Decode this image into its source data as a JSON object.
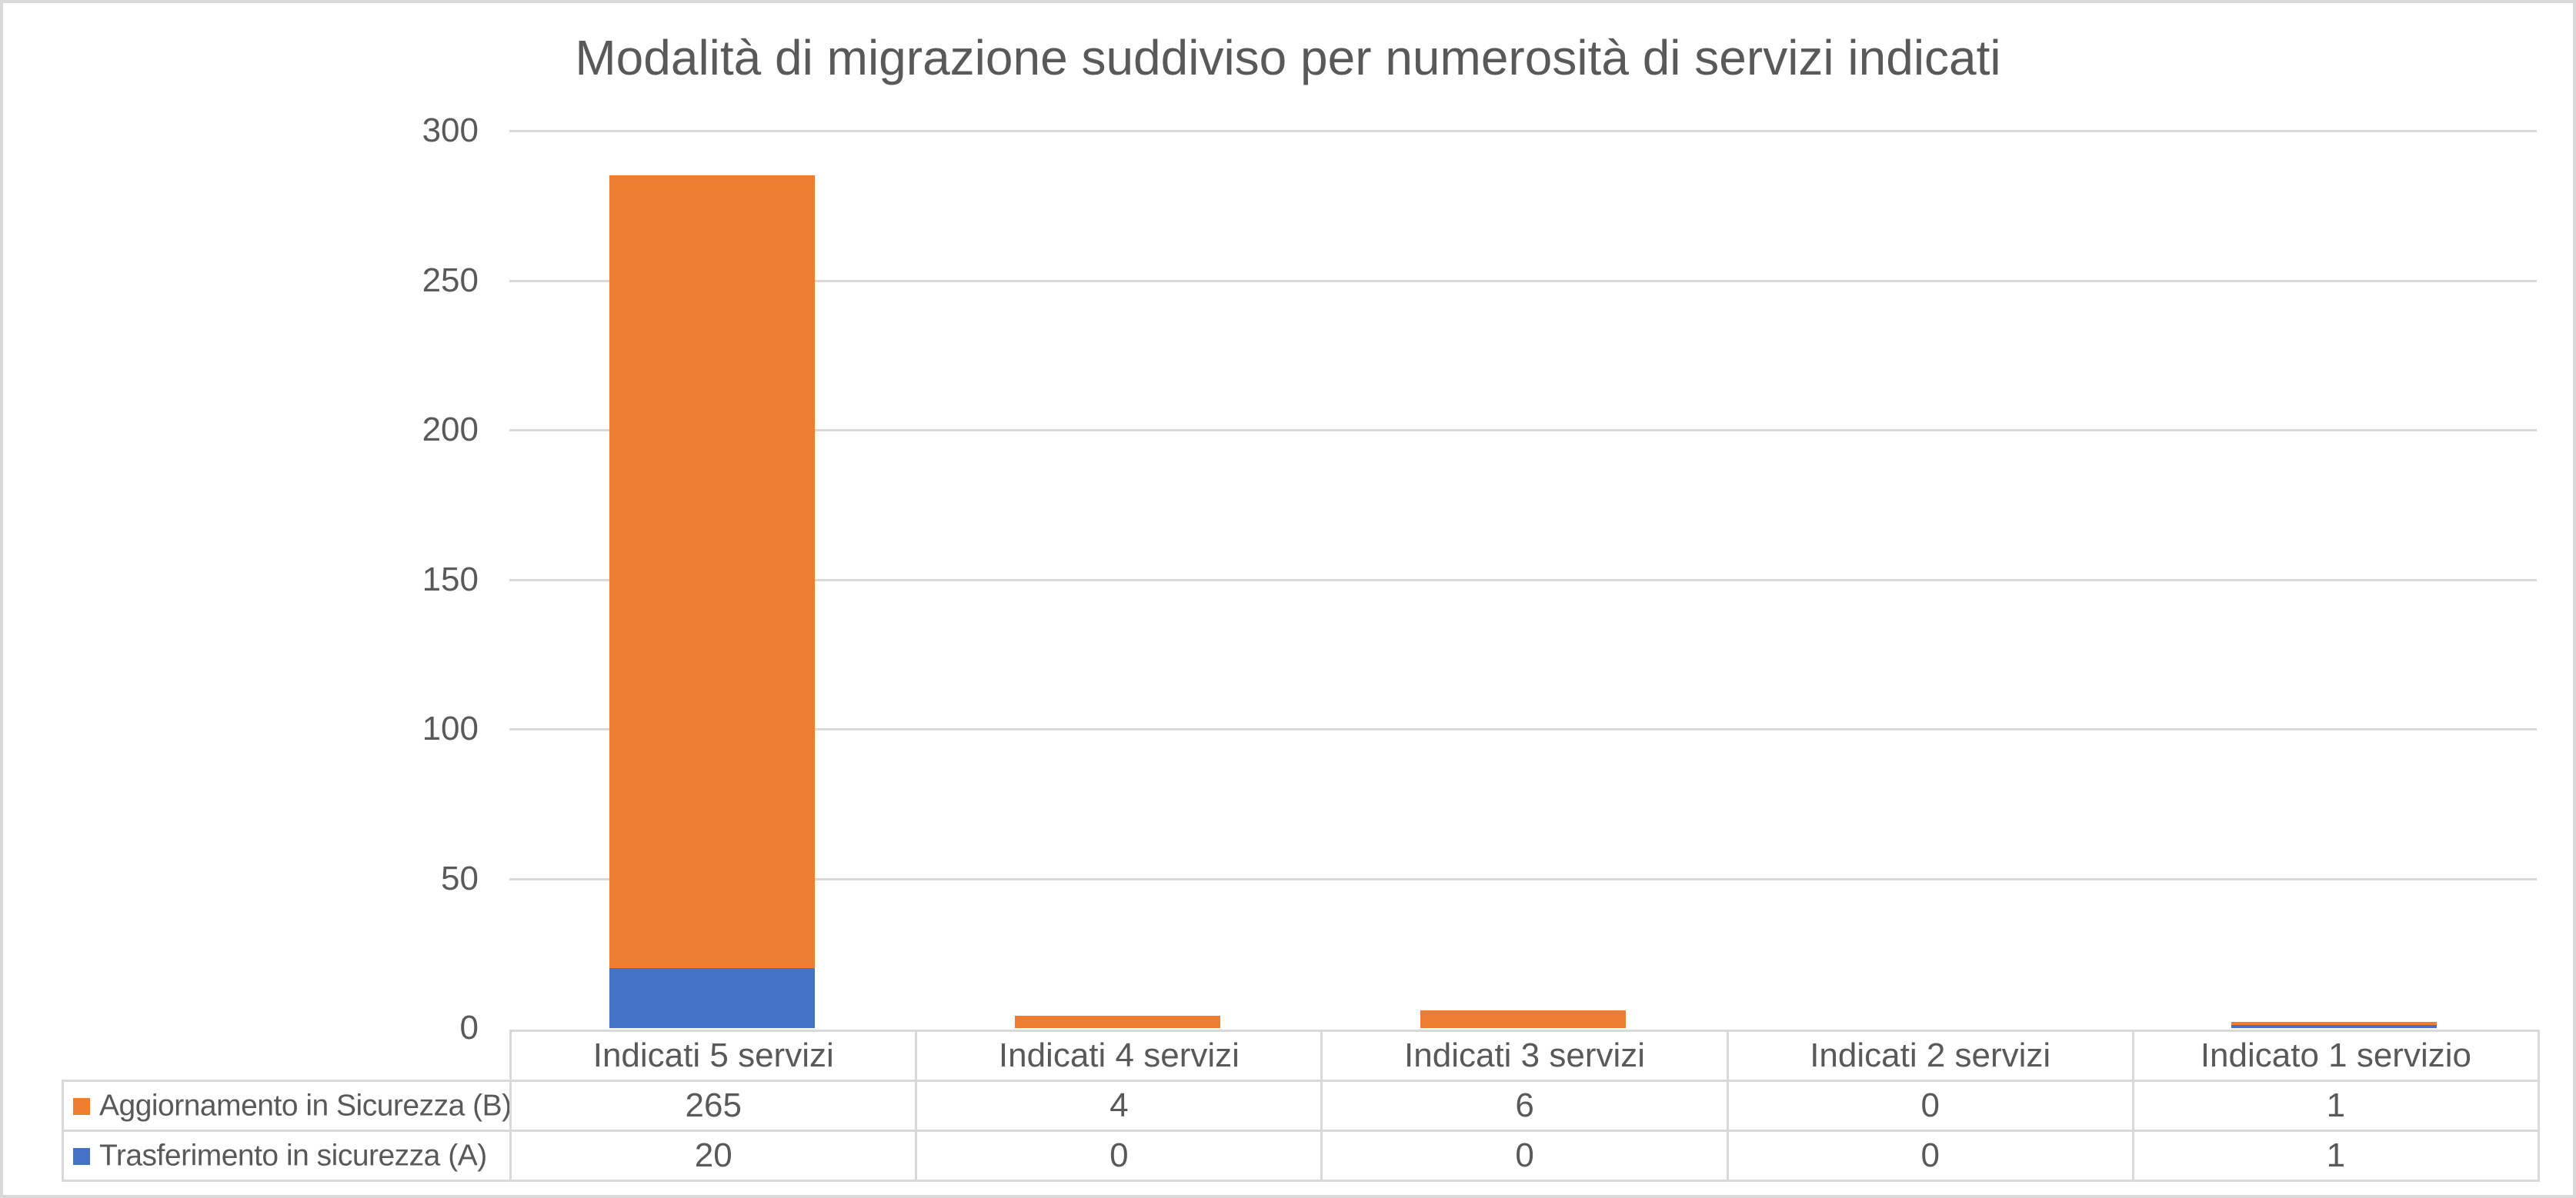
{
  "colors": {
    "accent_orange": "#ED7D31",
    "accent_blue": "#4472C4",
    "grid_and_border": "#D9D9D9",
    "text_gray": "#595959"
  },
  "chart_data": {
    "type": "bar",
    "stacked": true,
    "title": "Modalità di migrazione suddiviso per numerosità di servizi indicati",
    "xlabel": "",
    "ylabel": "",
    "categories": [
      "Indicati 5 servizi",
      "Indicati 4 servizi",
      "Indicati 3 servizi",
      "Indicati 2 servizi",
      "Indicato 1 servizio"
    ],
    "series": [
      {
        "name": "Trasferimento in sicurezza (A)",
        "color": "#4472C4",
        "swatch": "blue",
        "values": [
          20,
          0,
          0,
          0,
          1
        ]
      },
      {
        "name": "Aggiornamento in Sicurezza (B)",
        "color": "#ED7D31",
        "swatch": "orange",
        "values": [
          265,
          4,
          6,
          0,
          1
        ]
      }
    ],
    "ylim": [
      0,
      300
    ],
    "yticks": [
      0,
      50,
      100,
      150,
      200,
      250,
      300
    ],
    "grid": true,
    "legend_position": "data-table-left",
    "data_table_row_series_order": [
      1,
      0
    ]
  }
}
